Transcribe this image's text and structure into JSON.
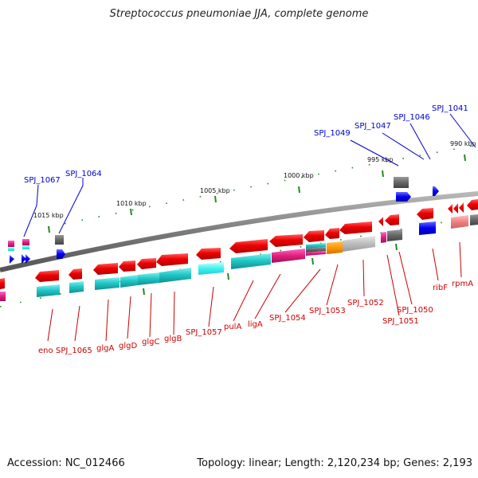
{
  "title": "Streptococcus pneumoniae JJA, complete genome",
  "footer": {
    "accession": "Accession: NC_012466",
    "topology": "Topology: linear; Length: 2,120,234 bp; Genes: 2,193"
  },
  "colors": {
    "forward_label": "#0000cc",
    "reverse_label": "#cc0000",
    "backbone": "#808080",
    "tick": "#228b22"
  },
  "scale_labels": [
    "1015 kbp",
    "1010 kbp",
    "1005 kbp",
    "1000 kbp",
    "995 kbp",
    "990 kbp"
  ],
  "forward_labels": [
    "SPJ_1067",
    "SPJ_1064",
    "SPJ_1049",
    "SPJ_1047",
    "SPJ_1046",
    "SPJ_1041"
  ],
  "reverse_labels": [
    "eno",
    "SPJ_1065",
    "glgA",
    "glgD",
    "glgC",
    "glgB",
    "SPJ_1057",
    "pulA",
    "ligA",
    "SPJ_1054",
    "SPJ_1053",
    "SPJ_1052",
    "SPJ_1051",
    "SPJ_1050",
    "ribF",
    "rpmA"
  ]
}
